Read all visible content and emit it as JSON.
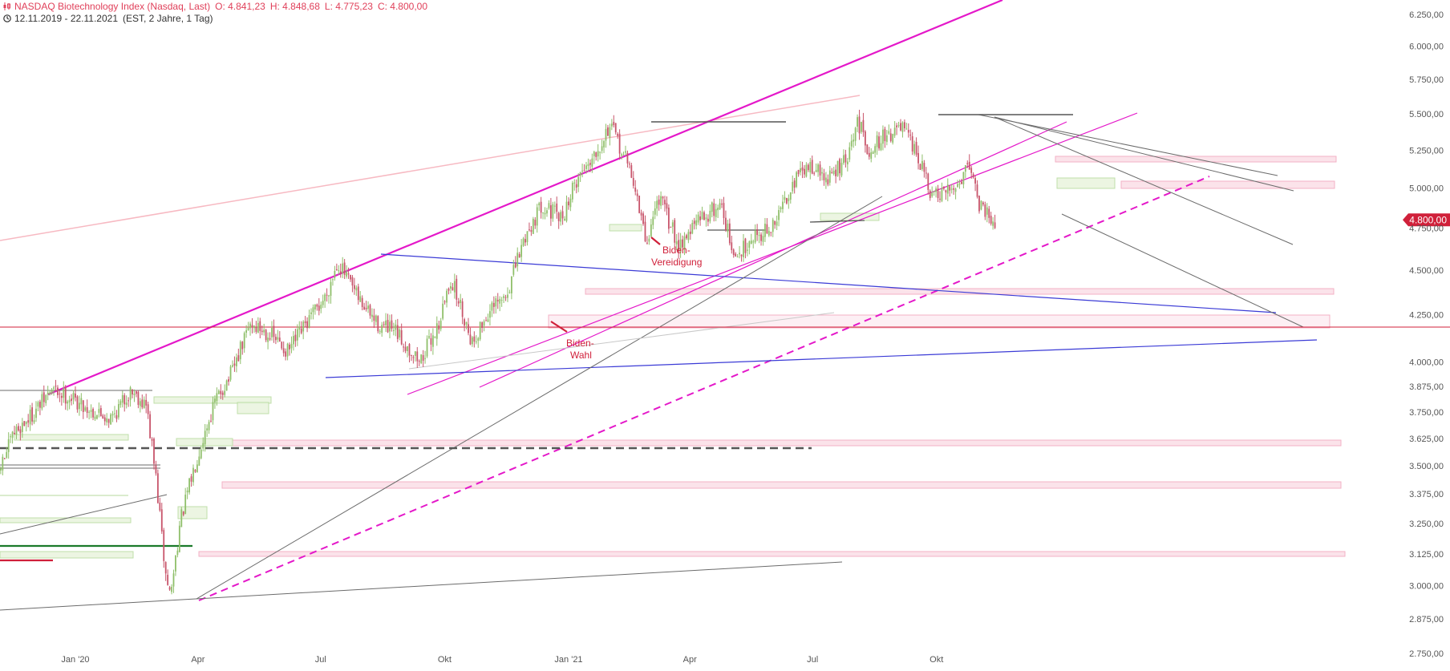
{
  "header": {
    "instrument": "NASDAQ Biotechnology Index (Nasdaq, Last)",
    "open": "O: 4.841,23",
    "high": "H: 4.848,68",
    "low": "L: 4.775,23",
    "close": "C: 4.800,00",
    "range": "12.11.2019 - 22.11.2021",
    "settings": "(EST, 2 Jahre, 1 Tag)"
  },
  "colors": {
    "up": "#8fbf6a",
    "down": "#c8556b",
    "accent_magenta": "#e418c9",
    "trend_blue": "#3b3bd6",
    "support_red": "#d0203a",
    "zone_pink": "#f7c6d3",
    "zone_green": "#d6ecc4"
  },
  "icons": {
    "chart_type": "candlestick-icon",
    "period": "clock-icon"
  },
  "chart_data": {
    "type": "candlestick",
    "date_range": [
      "2019-11-12",
      "2021-11-22"
    ],
    "x_ticks": [
      "Jan '20",
      "Apr",
      "Jul",
      "Okt",
      "Jan '21",
      "Apr",
      "Jul",
      "Okt"
    ],
    "y_ticks": [
      "2.750,00",
      "2.875,00",
      "3.000,00",
      "3.125,00",
      "3.250,00",
      "3.375,00",
      "3.500,00",
      "3.625,00",
      "3.750,00",
      "3.875,00",
      "4.000,00",
      "4.250,00",
      "4.500,00",
      "4.750,00",
      "5.000,00",
      "5.250,00",
      "5.500,00",
      "5.750,00",
      "6.000,00",
      "6.250,00"
    ],
    "y_scale": "log",
    "ylim": [
      2750,
      6250
    ],
    "last_price_label": "4.800,00",
    "annotations": [
      {
        "text": [
          "Biden-",
          "Vereidigung"
        ],
        "date": "2021-01-20"
      },
      {
        "text": [
          "Biden-",
          "Wahl"
        ],
        "date": "2020-11-03"
      }
    ],
    "path_anchors": [
      [
        "2019-11-12",
        3450
      ],
      [
        "2019-11-25",
        3650
      ],
      [
        "2019-12-10",
        3750
      ],
      [
        "2019-12-23",
        3860
      ],
      [
        "2020-01-06",
        3820
      ],
      [
        "2020-01-20",
        3760
      ],
      [
        "2020-02-05",
        3720
      ],
      [
        "2020-02-20",
        3860
      ],
      [
        "2020-03-02",
        3780
      ],
      [
        "2020-03-09",
        3450
      ],
      [
        "2020-03-16",
        3050
      ],
      [
        "2020-03-20",
        2960
      ],
      [
        "2020-03-27",
        3250
      ],
      [
        "2020-04-09",
        3550
      ],
      [
        "2020-04-22",
        3800
      ],
      [
        "2020-05-05",
        3950
      ],
      [
        "2020-05-18",
        4200
      ],
      [
        "2020-06-01",
        4150
      ],
      [
        "2020-06-15",
        4050
      ],
      [
        "2020-06-29",
        4200
      ],
      [
        "2020-07-13",
        4350
      ],
      [
        "2020-07-22",
        4550
      ],
      [
        "2020-08-05",
        4350
      ],
      [
        "2020-08-20",
        4200
      ],
      [
        "2020-09-03",
        4150
      ],
      [
        "2020-09-21",
        4000
      ],
      [
        "2020-10-05",
        4200
      ],
      [
        "2020-10-14",
        4450
      ],
      [
        "2020-10-30",
        4100
      ],
      [
        "2020-11-10",
        4250
      ],
      [
        "2020-11-24",
        4350
      ],
      [
        "2020-12-08",
        4700
      ],
      [
        "2020-12-21",
        4900
      ],
      [
        "2021-01-04",
        4800
      ],
      [
        "2021-01-15",
        5050
      ],
      [
        "2021-02-02",
        5300
      ],
      [
        "2021-02-09",
        5420
      ],
      [
        "2021-02-25",
        5100
      ],
      [
        "2021-03-08",
        4650
      ],
      [
        "2021-03-17",
        4950
      ],
      [
        "2021-04-01",
        4650
      ],
      [
        "2021-04-16",
        4800
      ],
      [
        "2021-05-03",
        4900
      ],
      [
        "2021-05-12",
        4550
      ],
      [
        "2021-05-25",
        4700
      ],
      [
        "2021-06-10",
        4750
      ],
      [
        "2021-06-25",
        5050
      ],
      [
        "2021-07-09",
        5150
      ],
      [
        "2021-07-20",
        5050
      ],
      [
        "2021-08-05",
        5200
      ],
      [
        "2021-08-12",
        5450
      ],
      [
        "2021-08-20",
        5250
      ],
      [
        "2021-09-01",
        5350
      ],
      [
        "2021-09-14",
        5400
      ],
      [
        "2021-09-28",
        5150
      ],
      [
        "2021-10-05",
        4950
      ],
      [
        "2021-10-15",
        4950
      ],
      [
        "2021-10-27",
        5050
      ],
      [
        "2021-11-02",
        5200
      ],
      [
        "2021-11-10",
        4900
      ],
      [
        "2021-11-22",
        4800
      ]
    ]
  }
}
